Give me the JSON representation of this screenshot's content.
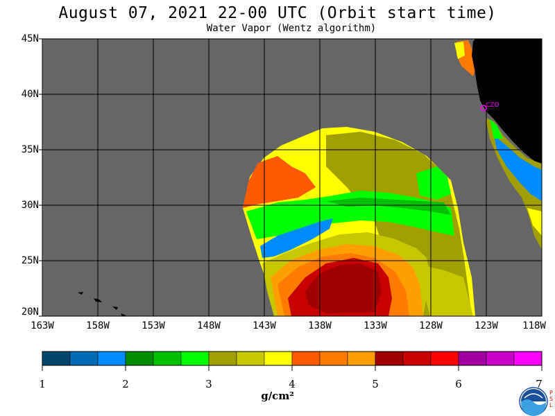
{
  "title": "August 07, 2021  22-00 UTC  (Orbit start time)",
  "subtitle": "Water Vapor (Wentz algorithm)",
  "lat_labels": [
    "45N",
    "40N",
    "35N",
    "30N",
    "25N",
    "20N"
  ],
  "lon_labels": [
    "163W",
    "158W",
    "153W",
    "148W",
    "143W",
    "138W",
    "133W",
    "128W",
    "123W",
    "118W"
  ],
  "station_label": "CZD",
  "colorbar": {
    "colors": [
      "#00476b",
      "#006cb3",
      "#008cff",
      "#008c00",
      "#00c000",
      "#00ff00",
      "#a0a000",
      "#c8c800",
      "#ffff00",
      "#ff5a00",
      "#ff7a00",
      "#ff9e00",
      "#a00000",
      "#c80000",
      "#ff0000",
      "#a000a0",
      "#c800c8",
      "#ff00ff"
    ],
    "tick_labels": [
      "1",
      "2",
      "3",
      "4",
      "5",
      "6",
      "7"
    ],
    "unit": "g/cm²"
  },
  "colors": {
    "ocean_nodata": "#666666",
    "land": "#000000",
    "grid": "#000000",
    "station": "#ff00ff"
  },
  "logo": {
    "name": "NOAA",
    "side_text": "PSL"
  }
}
